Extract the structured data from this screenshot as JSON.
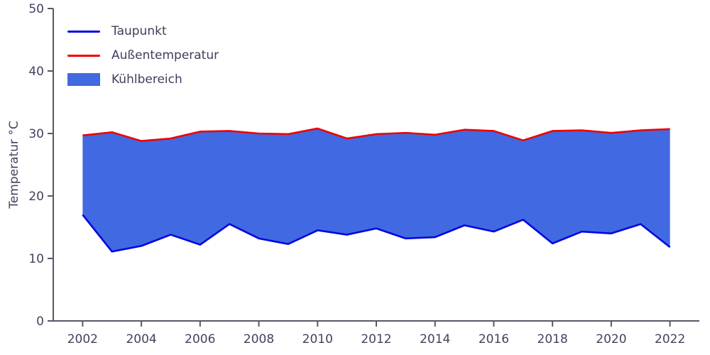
{
  "chart_data": {
    "type": "area",
    "title": "",
    "xlabel": "",
    "ylabel": "Temperatur °C",
    "x": [
      2002,
      2003,
      2004,
      2005,
      2006,
      2007,
      2008,
      2009,
      2010,
      2011,
      2012,
      2013,
      2014,
      2015,
      2016,
      2017,
      2018,
      2019,
      2020,
      2021,
      2022
    ],
    "series": [
      {
        "name": "Taupunkt",
        "color": "#0008e0",
        "values": [
          17.0,
          11.1,
          12.0,
          13.8,
          12.2,
          15.5,
          13.2,
          12.3,
          14.5,
          13.8,
          14.8,
          13.2,
          13.4,
          15.3,
          14.3,
          16.2,
          12.4,
          14.3,
          14.0,
          15.5,
          11.8
        ]
      },
      {
        "name": "Außentemperatur",
        "color": "#ee0000",
        "values": [
          29.7,
          30.2,
          28.8,
          29.2,
          30.3,
          30.4,
          30.0,
          29.9,
          30.8,
          29.2,
          29.9,
          30.1,
          29.8,
          30.6,
          30.4,
          28.9,
          30.4,
          30.5,
          30.1,
          30.5,
          30.7
        ]
      }
    ],
    "fill": {
      "name": "Kühlbereich",
      "color": "#4169e1",
      "between": [
        "Taupunkt",
        "Außentemperatur"
      ]
    },
    "xlim": [
      2001,
      2023
    ],
    "ylim": [
      0,
      50
    ],
    "xticks": [
      2002,
      2004,
      2006,
      2008,
      2010,
      2012,
      2014,
      2016,
      2018,
      2020,
      2022
    ],
    "yticks": [
      0,
      10,
      20,
      30,
      40,
      50
    ],
    "grid": false,
    "legend_position": "upper-left",
    "axis_color": "#585868",
    "text_color": "#42425e"
  }
}
